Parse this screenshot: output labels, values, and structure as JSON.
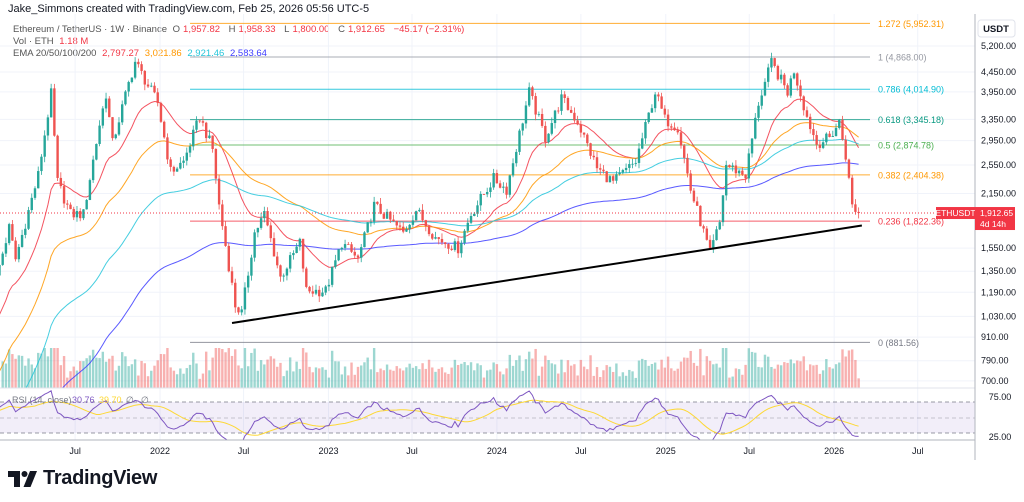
{
  "header": {
    "credit": "Jake_Simmons created with TradingView.com, Feb 25, 2026 05:56 UTC-5"
  },
  "legend": {
    "symbol": "Ethereum / TetherUS · 1W · Binance",
    "open_label": "O",
    "open": "1,957.82",
    "high_label": "H",
    "high": "1,958.33",
    "low_label": "L",
    "low": "1,800.00",
    "close_label": "C",
    "close": "1,912.65",
    "change": "−45.17 (−2.31%)",
    "vol_label": "Vol · ETH",
    "vol": "1.18 M",
    "ema_label": "EMA 20/50/100/200",
    "ema_values": [
      "2,797.27",
      "3,021.86",
      "2,921.46",
      "2,583.64"
    ],
    "ema_colors": [
      "#f23645",
      "#ff9800",
      "#26c6da",
      "#3d3dff"
    ]
  },
  "rsi_legend": {
    "label": "RSI (14, close)",
    "value": "30.76",
    "ma": "39.70",
    "icons": [
      "∅",
      "∅"
    ]
  },
  "price_axis": {
    "currency": "USDT",
    "ticks": [
      "5,200.00",
      "4,450.00",
      "3,950.00",
      "3,350.00",
      "2,950.00",
      "2,550.00",
      "2,150.00",
      "1,550.00",
      "1,350.00",
      "1,190.00",
      "1,030.00",
      "910.00",
      "790.00",
      "700.00"
    ]
  },
  "rsi_axis": {
    "ticks": [
      "75.00",
      "25.00"
    ]
  },
  "last_price": {
    "symbol": "ETHUSDT",
    "price": "1,912.65",
    "countdown": "4d 14h",
    "color": "#f23645"
  },
  "brand": {
    "name": "TradingView"
  },
  "colors": {
    "up": "#26a69a",
    "down": "#ef5350",
    "rsi": "#7e57c2",
    "rsi_ma": "#fdd835",
    "trendline": "#000000"
  },
  "chart_data": {
    "type": "candlestick",
    "title": "Ethereum / TetherUS · 1W · Binance",
    "y_scale": "log",
    "ylim": [
      650,
      6100
    ],
    "grid": true,
    "price_ticks": [
      5200,
      4450,
      3950,
      3350,
      2950,
      2550,
      2150,
      1550,
      1350,
      1190,
      1030,
      910,
      790,
      700
    ],
    "time_ticks": [
      {
        "date": "2021-07-01",
        "label": "Jul"
      },
      {
        "date": "2022-01-01",
        "label": "2022"
      },
      {
        "date": "2022-07-01",
        "label": "Jul"
      },
      {
        "date": "2023-01-01",
        "label": "2023"
      },
      {
        "date": "2023-07-01",
        "label": "Jul"
      },
      {
        "date": "2024-01-01",
        "label": "2024"
      },
      {
        "date": "2024-07-01",
        "label": "Jul"
      },
      {
        "date": "2025-01-01",
        "label": "2025"
      },
      {
        "date": "2025-07-01",
        "label": "Jul"
      },
      {
        "date": "2026-01-01",
        "label": "2026"
      },
      {
        "date": "2026-07-01",
        "label": "Jul"
      }
    ],
    "close_anchors": [
      [
        "2021-01-04",
        1200
      ],
      [
        "2021-02-08",
        1750
      ],
      [
        "2021-02-22",
        1450
      ],
      [
        "2021-03-15",
        1800
      ],
      [
        "2021-04-12",
        2400
      ],
      [
        "2021-05-10",
        3900
      ],
      [
        "2021-05-24",
        2300
      ],
      [
        "2021-06-21",
        1900
      ],
      [
        "2021-07-19",
        1900
      ],
      [
        "2021-08-23",
        3250
      ],
      [
        "2021-09-06",
        3900
      ],
      [
        "2021-09-20",
        2900
      ],
      [
        "2021-10-25",
        4150
      ],
      [
        "2021-11-08",
        4730
      ],
      [
        "2021-12-06",
        4100
      ],
      [
        "2021-12-27",
        3700
      ],
      [
        "2022-01-24",
        2450
      ],
      [
        "2022-02-21",
        2600
      ],
      [
        "2022-03-28",
        3400
      ],
      [
        "2022-04-25",
        2800
      ],
      [
        "2022-05-09",
        2000
      ],
      [
        "2022-06-13",
        1100
      ],
      [
        "2022-06-27",
        1050
      ],
      [
        "2022-07-25",
        1700
      ],
      [
        "2022-08-15",
        1900
      ],
      [
        "2022-09-19",
        1300
      ],
      [
        "2022-10-31",
        1600
      ],
      [
        "2022-11-14",
        1200
      ],
      [
        "2022-12-26",
        1200
      ],
      [
        "2023-01-30",
        1600
      ],
      [
        "2023-03-06",
        1450
      ],
      [
        "2023-04-10",
        2000
      ],
      [
        "2023-06-12",
        1700
      ],
      [
        "2023-07-10",
        1950
      ],
      [
        "2023-08-21",
        1650
      ],
      [
        "2023-10-09",
        1550
      ],
      [
        "2023-11-06",
        1900
      ],
      [
        "2023-12-25",
        2350
      ],
      [
        "2024-01-22",
        2200
      ],
      [
        "2024-03-11",
        3950
      ],
      [
        "2024-04-15",
        3000
      ],
      [
        "2024-05-20",
        3800
      ],
      [
        "2024-06-24",
        3300
      ],
      [
        "2024-08-05",
        2500
      ],
      [
        "2024-09-09",
        2300
      ],
      [
        "2024-10-28",
        2600
      ],
      [
        "2024-12-09",
        3950
      ],
      [
        "2024-12-30",
        3350
      ],
      [
        "2025-01-27",
        3200
      ],
      [
        "2025-02-24",
        2200
      ],
      [
        "2025-04-07",
        1500
      ],
      [
        "2025-04-28",
        1800
      ],
      [
        "2025-05-12",
        2550
      ],
      [
        "2025-06-23",
        2400
      ],
      [
        "2025-07-21",
        3700
      ],
      [
        "2025-08-18",
        4700
      ],
      [
        "2025-09-22",
        3950
      ],
      [
        "2025-10-06",
        4500
      ],
      [
        "2025-11-03",
        3400
      ],
      [
        "2025-11-24",
        2900
      ],
      [
        "2025-12-22",
        3000
      ],
      [
        "2026-01-12",
        3300
      ],
      [
        "2026-01-26",
        2700
      ],
      [
        "2026-02-09",
        2000
      ],
      [
        "2026-02-23",
        1912.65
      ]
    ],
    "fib_levels": [
      {
        "ratio": "1.272",
        "price": 5952.31,
        "label": "1.272 (5,952.31)",
        "color": "#ff9800"
      },
      {
        "ratio": "1",
        "price": 4868.0,
        "label": "1 (4,868.00)",
        "color": "#9598a1"
      },
      {
        "ratio": "0.786",
        "price": 4014.9,
        "label": "0.786 (4,014.90)",
        "color": "#00bcd4"
      },
      {
        "ratio": "0.618",
        "price": 3345.18,
        "label": "0.618 (3,345.18)",
        "color": "#089981"
      },
      {
        "ratio": "0.5",
        "price": 2874.78,
        "label": "0.5 (2,874.78)",
        "color": "#4caf50"
      },
      {
        "ratio": "0.382",
        "price": 2404.38,
        "label": "0.382 (2,404.38)",
        "color": "#ff9800"
      },
      {
        "ratio": "0.236",
        "price": 1822.36,
        "label": "0.236 (1,822.36)",
        "color": "#f23645"
      },
      {
        "ratio": "0",
        "price": 881.56,
        "label": "0 (881.56)",
        "color": "#787b86"
      }
    ],
    "fib_start_date": "2022-03-07",
    "trendline": [
      [
        "2022-06-06",
        990
      ],
      [
        "2026-03-02",
        1775
      ]
    ],
    "last_close": 1912.65,
    "rsi": {
      "period": 14,
      "overbought": 70,
      "oversold": 30,
      "last": 30.76,
      "ma_last": 39.7
    },
    "ema_periods": [
      20,
      50,
      100,
      200
    ]
  }
}
